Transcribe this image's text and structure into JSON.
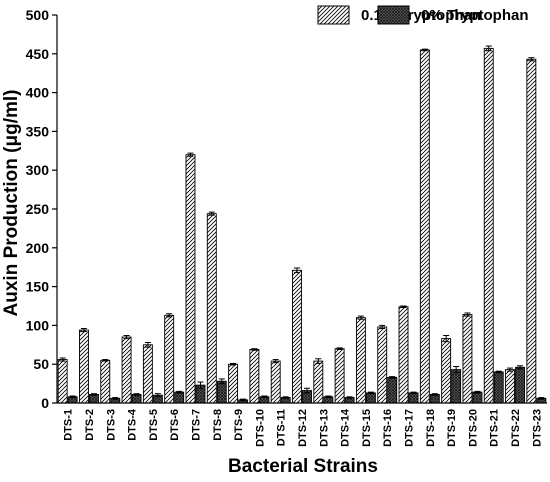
{
  "chart_data": {
    "type": "bar",
    "xlabel": "Bacterial Strains",
    "ylabel": "Auxin Production (μg/ml)",
    "ylim": [
      0,
      500
    ],
    "yticks": [
      0,
      50,
      100,
      150,
      200,
      250,
      300,
      350,
      400,
      450,
      500
    ],
    "legend_position": "top-right",
    "categories": [
      "DTS-1",
      "DTS-2",
      "DTS-3",
      "DTS-4",
      "DTS-5",
      "DTS-6",
      "DTS-7",
      "DTS-8",
      "DTS-9",
      "DTS-10",
      "DTS-11",
      "DTS-12",
      "DTS-13",
      "DTS-14",
      "DTS-15",
      "DTS-16",
      "DTS-17",
      "DTS-18",
      "DTS-19",
      "DTS-20",
      "DTS-21",
      "DTS-22",
      "DTS-23"
    ],
    "series": [
      {
        "name": "0.1% Tryptophan",
        "pattern": "diagonal-hatch",
        "values": [
          56,
          94,
          55,
          85,
          75,
          113,
          320,
          244,
          50,
          69,
          54,
          171,
          54,
          70,
          110,
          98,
          124,
          455,
          83,
          114,
          457,
          43,
          443
        ],
        "errors": [
          2,
          2,
          1,
          2,
          3,
          2,
          2,
          2,
          1,
          1,
          2,
          3,
          3,
          1,
          2,
          2,
          1,
          1,
          4,
          2,
          3,
          2,
          2
        ]
      },
      {
        "name": "0% Tryptophan",
        "pattern": "crosshatch",
        "values": [
          8,
          11,
          6,
          11,
          10,
          14,
          23,
          28,
          4,
          8,
          7,
          16,
          8,
          7,
          13,
          33,
          13,
          11,
          43,
          14,
          40,
          46,
          6
        ],
        "errors": [
          1,
          1,
          1,
          1,
          2,
          1,
          4,
          3,
          1,
          1,
          1,
          3,
          1,
          1,
          1,
          1,
          1,
          1,
          4,
          1,
          1,
          2,
          1
        ]
      }
    ]
  }
}
